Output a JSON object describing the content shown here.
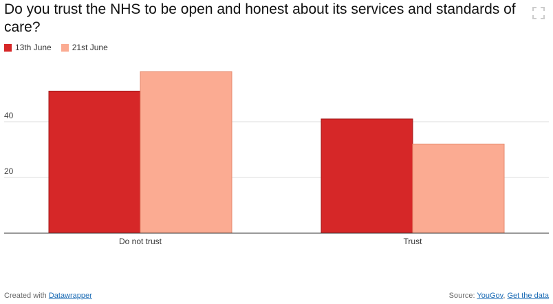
{
  "chart_data": {
    "type": "bar",
    "title": "Do you trust the NHS to be open and honest about its services and standards of care?",
    "categories": [
      "Do not trust",
      "Trust"
    ],
    "series": [
      {
        "name": "13th June",
        "color": "#d62728",
        "values": [
          51,
          41
        ]
      },
      {
        "name": "21st June",
        "color": "#fbab92",
        "values": [
          58,
          32
        ]
      }
    ],
    "yticks": [
      20,
      40
    ],
    "ylim": [
      0,
      64
    ],
    "xlabel": "",
    "ylabel": "",
    "grid": true,
    "legend": "top-left"
  },
  "footer": {
    "created_prefix": "Created with",
    "created_link": "Datawrapper",
    "source_prefix": "Source:",
    "source_link": "YouGov",
    "separator": ",",
    "data_link": "Get the data"
  },
  "icons": {
    "expand": "expand-icon"
  }
}
